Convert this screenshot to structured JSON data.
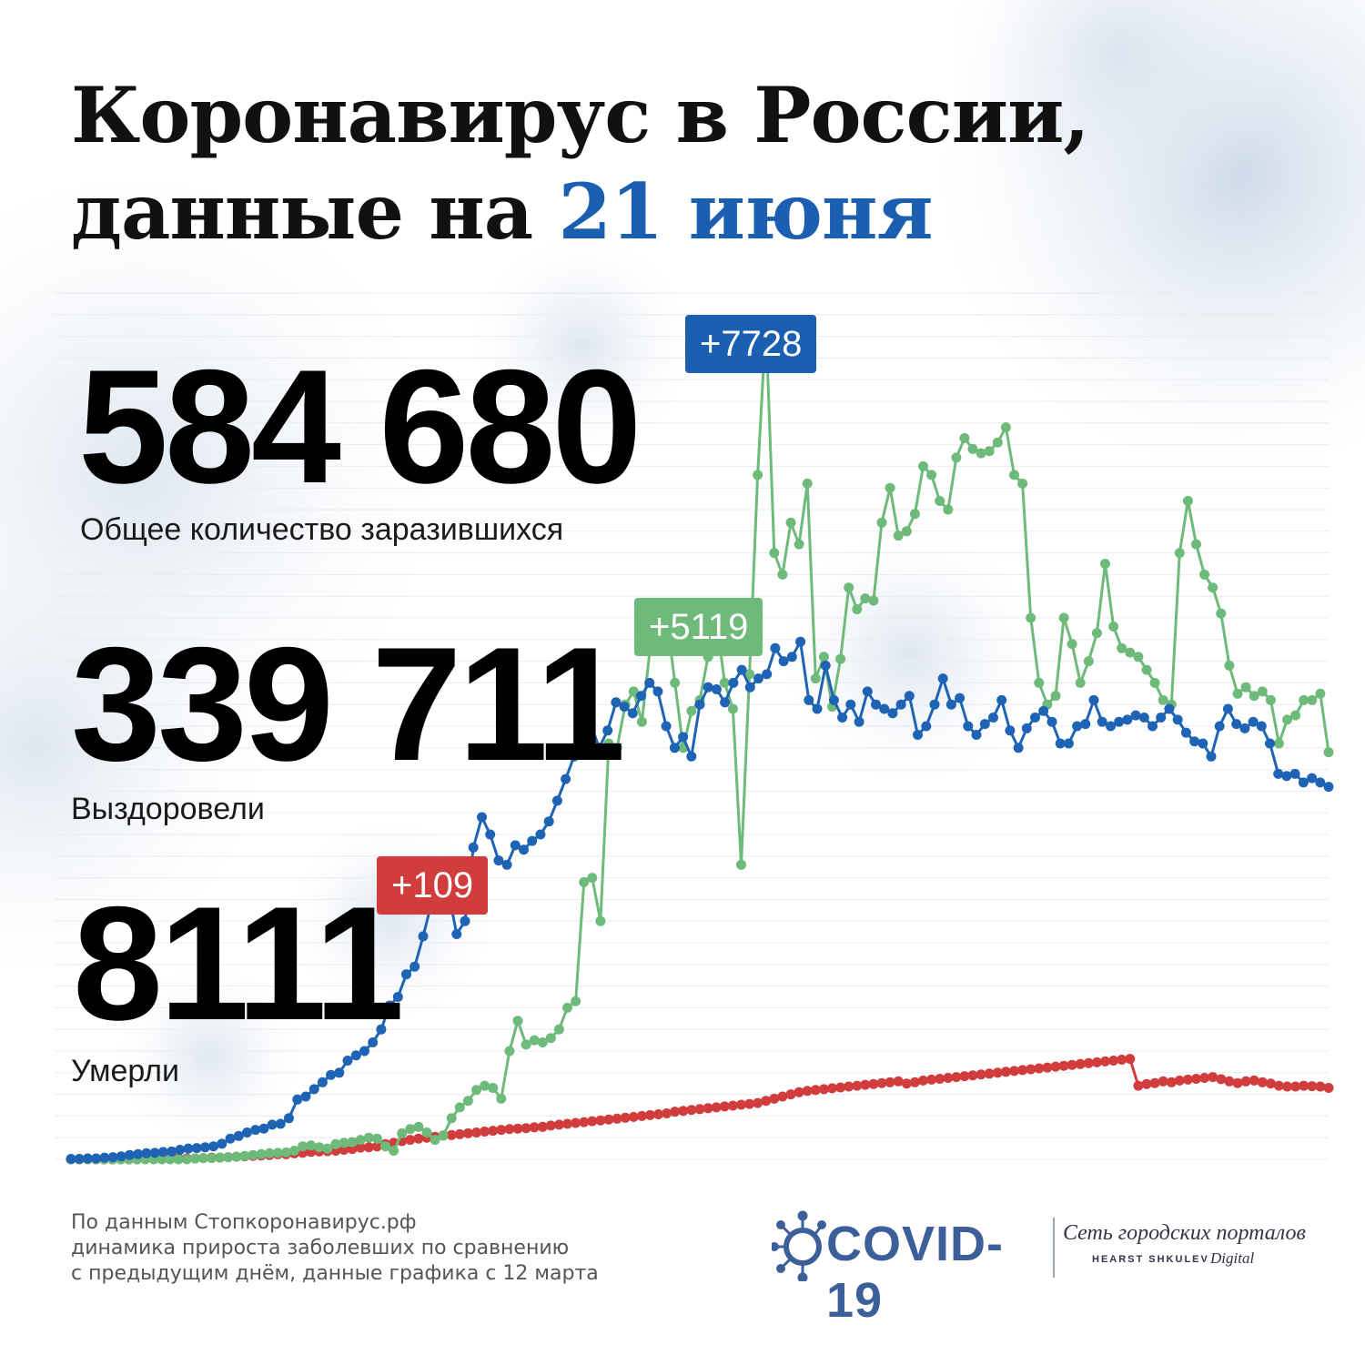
{
  "header": {
    "title_line1": "Коронавирус в России,",
    "title_line2_prefix": "данные на ",
    "title_line2_accent": "21 июня"
  },
  "stats": {
    "total": {
      "value": "584 680",
      "delta": "+7728",
      "label": "Общее количество заразившихся"
    },
    "recovered": {
      "value": "339 711",
      "delta": "+5119",
      "label": "Выздоровели"
    },
    "deaths": {
      "value": "8111",
      "delta": "+109",
      "label": "Умерли"
    }
  },
  "footer": {
    "line1": "По данным Стопкоронавирус.рф",
    "line2": "динамика прироста заболевших по сравнению",
    "line3": "с предыдущим днём, данные графика с 12 марта"
  },
  "branding": {
    "covid_logo": "COVID-19",
    "portal_line1": "Сеть городских порталов",
    "portal_line2": "HEARST SHKULEV",
    "portal_line3": "Digital"
  },
  "colors": {
    "accent_blue": "#1a5fb0",
    "cases_blue": "#1f63b5",
    "recovered_green": "#6dba7a",
    "deaths_red": "#d13c3c"
  },
  "chart_data": {
    "type": "line",
    "x_start": "12 марта",
    "series": [
      {
        "color": "#1f63b5",
        "values": [
          1,
          1,
          2,
          2,
          4,
          5,
          7,
          10,
          12,
          14,
          15,
          17,
          18,
          22,
          25,
          26,
          28,
          30,
          36,
          48,
          54,
          62,
          68,
          71,
          80,
          82,
          95,
          138,
          145,
          162,
          178,
          195,
          200,
          228,
          240,
          250,
          270,
          300,
          355,
          375,
          427,
          445,
          515,
          592,
          680,
          620,
          520,
          550,
          720,
          790,
          750,
          690,
          680,
          725,
          715,
          735,
          750,
          780,
          828,
          878,
          930,
          1010,
          1005,
          950,
          990,
          1055,
          1045,
          1030,
          1070,
          1100,
          1080,
          1000,
          950,
          975,
          930,
          1050,
          1090,
          1085,
          1055,
          1100,
          1130,
          1090,
          1110,
          1120,
          1180,
          1150,
          1160,
          1195,
          1060,
          1040,
          1140,
          1060,
          1020,
          1050,
          1010,
          1080,
          1050,
          1040,
          1030,
          1050,
          1070,
          980,
          1000,
          1050,
          1110,
          1050,
          1065,
          1000,
          980,
          1005,
          1020,
          1060,
          990,
          950,
          995,
          1020,
          1035,
          1010,
          960,
          960,
          1000,
          1005,
          1060,
          1010,
          1000,
          1010,
          1015,
          1025,
          1020,
          1000,
          1020,
          1040,
          1015,
          985,
          965,
          960,
          930,
          1000,
          1040,
          1005,
          995,
          1010,
          1000,
          960,
          890,
          885,
          890,
          870,
          880,
          870,
          860
        ]
      },
      {
        "color": "#6dba7a",
        "values": [
          0,
          0,
          0,
          0,
          0,
          0,
          0,
          0,
          0,
          0,
          0,
          0,
          0,
          0,
          0,
          2,
          3,
          3,
          4,
          5,
          6,
          8,
          10,
          12,
          14,
          15,
          16,
          20,
          30,
          32,
          28,
          25,
          35,
          38,
          40,
          45,
          50,
          48,
          30,
          20,
          60,
          70,
          75,
          62,
          45,
          55,
          95,
          120,
          135,
          160,
          170,
          165,
          140,
          250,
          320,
          265,
          275,
          270,
          280,
          300,
          350,
          365,
          640,
          650,
          550,
          960,
          950,
          1050,
          1080,
          1010,
          1180,
          1270,
          1250,
          1100,
          950,
          1035,
          1060,
          1160,
          1250,
          1100,
          1040,
          680,
          1120,
          1580,
          1930,
          1400,
          1350,
          1470,
          1420,
          1560,
          1110,
          1160,
          1045,
          1155,
          1320,
          1270,
          1295,
          1290,
          1470,
          1550,
          1440,
          1450,
          1490,
          1600,
          1580,
          1520,
          1500,
          1620,
          1665,
          1640,
          1630,
          1635,
          1655,
          1690,
          1580,
          1560,
          1250,
          1100,
          1050,
          1070,
          1250,
          1190,
          1100,
          1150,
          1215,
          1375,
          1230,
          1180,
          1170,
          1160,
          1130,
          1100,
          1060,
          1050,
          1400,
          1520,
          1420,
          1350,
          1320,
          1260,
          1140,
          1075,
          1090,
          1070,
          1080,
          1060,
          960,
          1015,
          1025,
          1060,
          1060,
          1075,
          940
        ]
      },
      {
        "color": "#d13c3c",
        "values": [
          0,
          0,
          0,
          0,
          0,
          0,
          0,
          0,
          0,
          1,
          1,
          1,
          1,
          2,
          2,
          2,
          3,
          4,
          4,
          5,
          6,
          7,
          8,
          9,
          10,
          12,
          12,
          14,
          15,
          17,
          18,
          19,
          20,
          22,
          24,
          27,
          28,
          30,
          35,
          38,
          42,
          45,
          48,
          50,
          52,
          55,
          56,
          58,
          60,
          62,
          64,
          66,
          68,
          70,
          71,
          72,
          74,
          75,
          78,
          80,
          82,
          84,
          86,
          88,
          90,
          92,
          94,
          96,
          98,
          100,
          102,
          104,
          106,
          110,
          112,
          114,
          116,
          118,
          120,
          122,
          124,
          126,
          128,
          130,
          135,
          140,
          145,
          150,
          155,
          158,
          160,
          162,
          164,
          166,
          168,
          170,
          172,
          174,
          176,
          178,
          180,
          175,
          178,
          182,
          184,
          186,
          188,
          190,
          192,
          194,
          196,
          198,
          200,
          202,
          204,
          206,
          208,
          210,
          212,
          214,
          216,
          218,
          220,
          222,
          224,
          226,
          228,
          230,
          232,
          170,
          174,
          176,
          180,
          178,
          182,
          184,
          186,
          188,
          190,
          185,
          180,
          176,
          180,
          182,
          178,
          175,
          170,
          168,
          168,
          170,
          169,
          168,
          165
        ]
      }
    ]
  }
}
